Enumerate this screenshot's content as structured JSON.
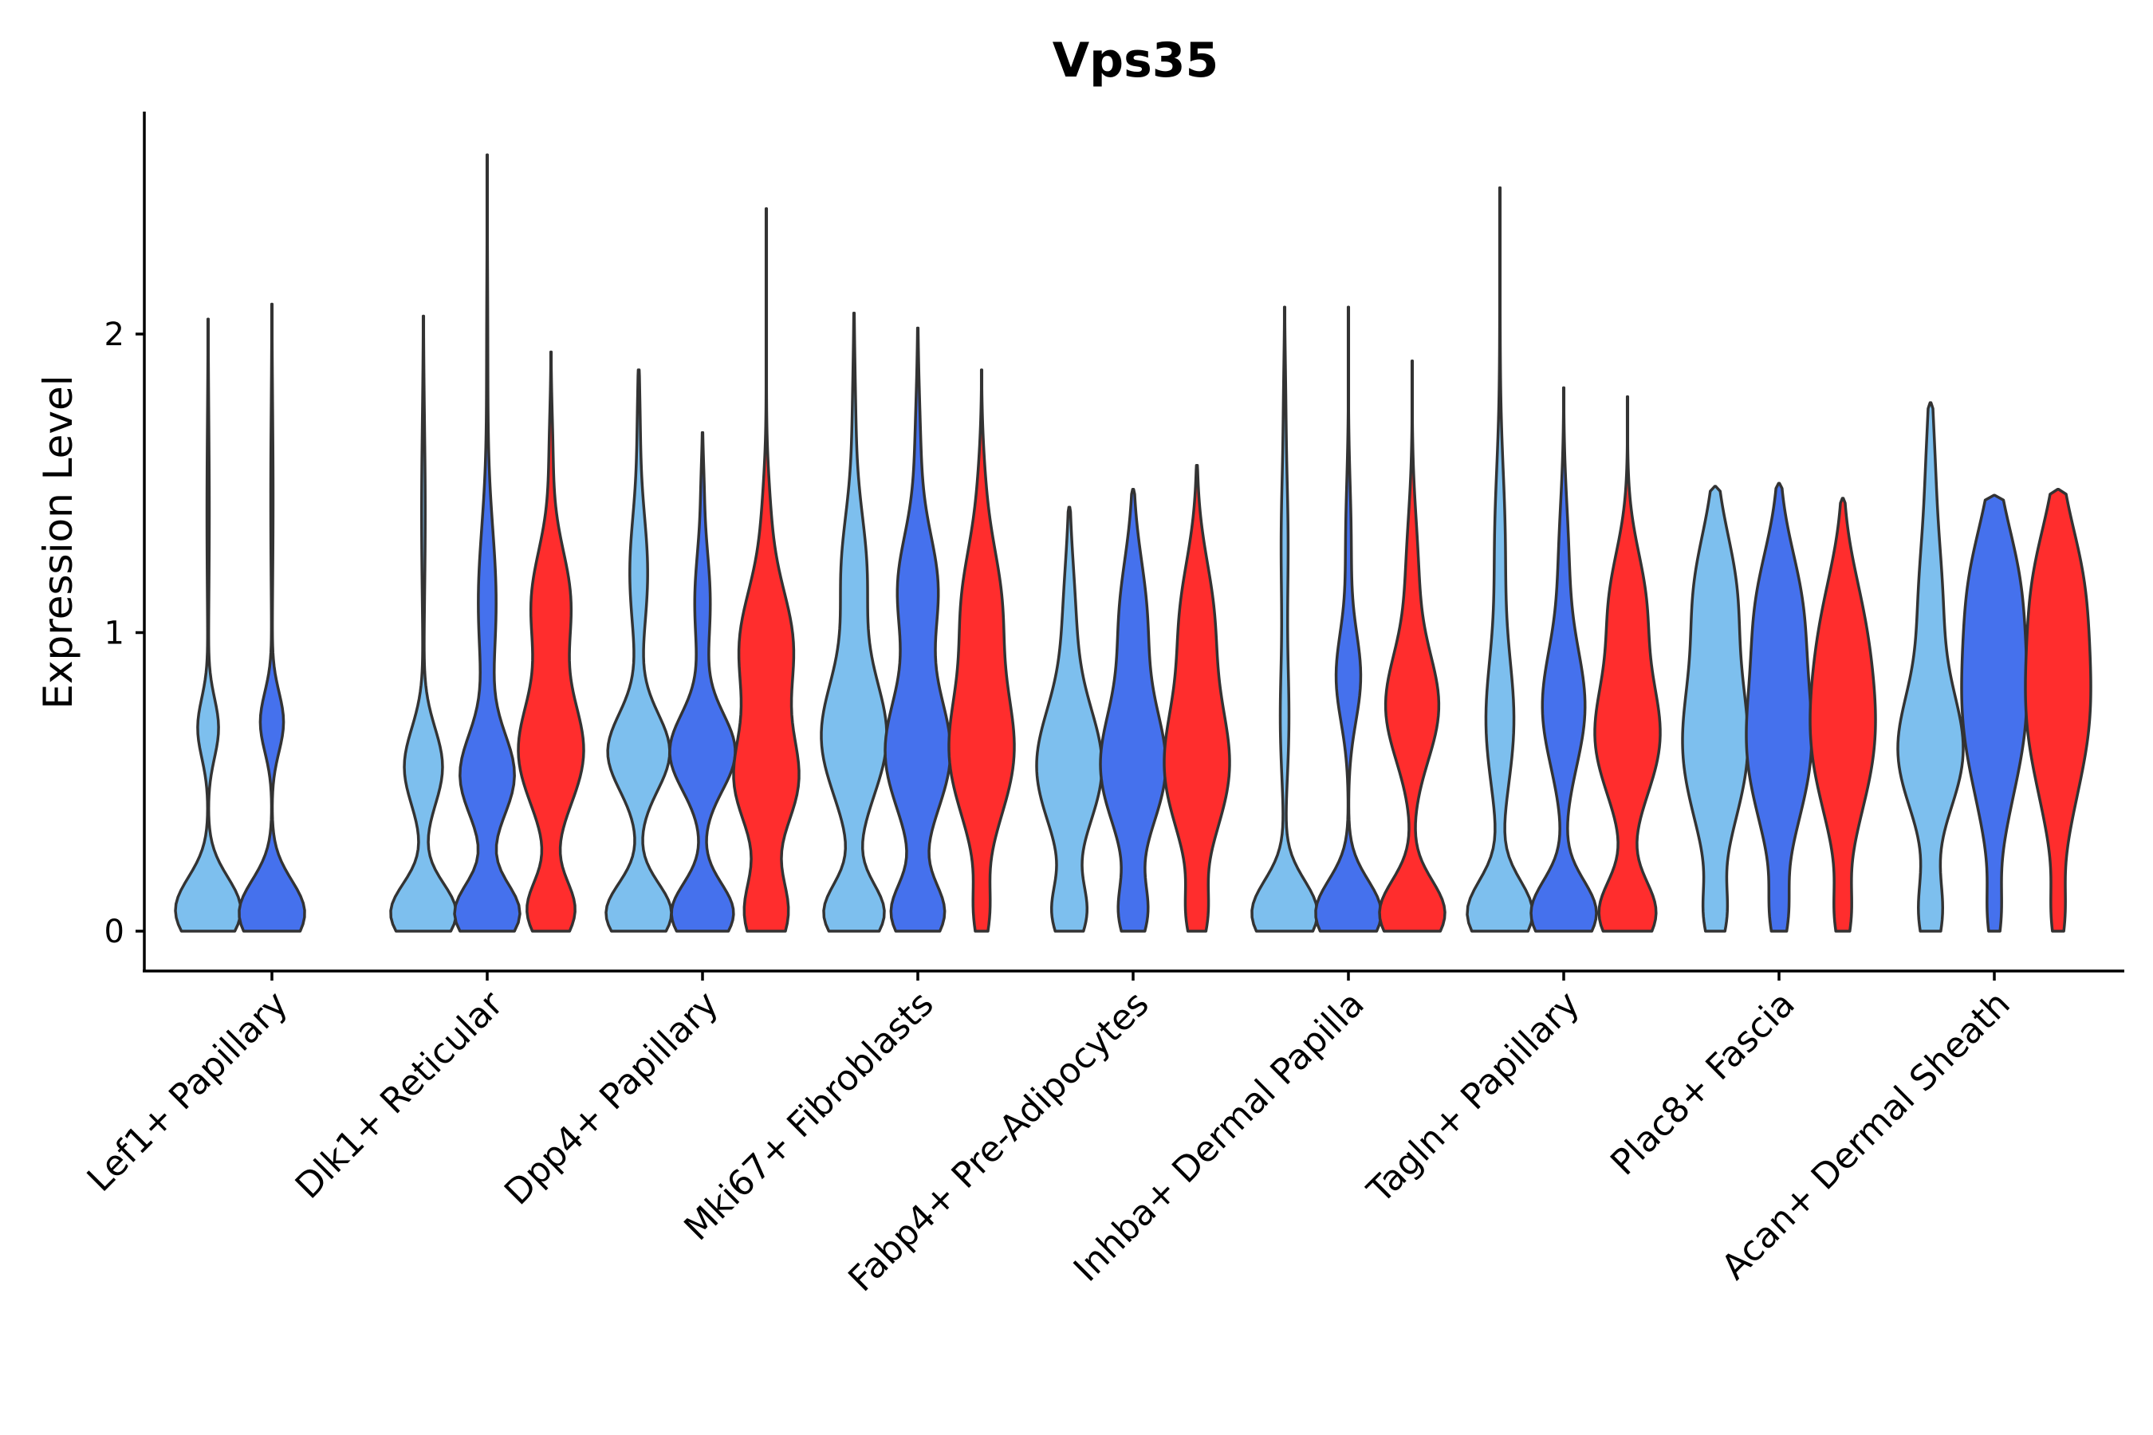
{
  "chart_data": {
    "type": "violin",
    "title": "Vps35",
    "xlabel": "",
    "ylabel": "Expression Level",
    "ylim": [
      -0.13,
      2.75
    ],
    "yticks": [
      0,
      1,
      2
    ],
    "categories": [
      "Lef1+ Papillary",
      "Dlk1+ Reticular",
      "Dpp4+ Papillary",
      "Mki67+ Fibroblasts",
      "Fabp4+ Pre-Adipocytes",
      "Inhba+ Dermal Papilla",
      "Tagln+ Papillary",
      "Plac8+ Fascia",
      "Acan+ Dermal Sheath"
    ],
    "groups": [
      {
        "name": "group1",
        "color": "#7DBFEE"
      },
      {
        "name": "group2",
        "color": "#4571ED"
      },
      {
        "name": "group3",
        "color": "#FF2D2D"
      }
    ],
    "violins": [
      {
        "category": 0,
        "group": 0,
        "max": 2.05,
        "modes": [
          [
            0.07,
            0.85,
            0.11
          ],
          [
            0.68,
            0.27,
            0.1
          ],
          [
            1.4,
            0.03,
            0.3
          ]
        ]
      },
      {
        "category": 0,
        "group": 1,
        "max": 2.1,
        "modes": [
          [
            0.06,
            0.85,
            0.11
          ],
          [
            0.7,
            0.3,
            0.1
          ],
          [
            1.45,
            0.03,
            0.3
          ]
        ]
      },
      {
        "category": 1,
        "group": 0,
        "max": 2.06,
        "modes": [
          [
            0.06,
            0.55,
            0.1
          ],
          [
            0.55,
            0.32,
            0.13
          ],
          [
            1.4,
            0.03,
            0.3
          ]
        ]
      },
      {
        "category": 1,
        "group": 1,
        "max": 2.6,
        "modes": [
          [
            0.06,
            0.55,
            0.1
          ],
          [
            0.52,
            0.45,
            0.14
          ],
          [
            1.1,
            0.15,
            0.25
          ],
          [
            1.9,
            0.01,
            0.3
          ]
        ]
      },
      {
        "category": 1,
        "group": 2,
        "max": 1.94,
        "modes": [
          [
            0.07,
            0.55,
            0.1
          ],
          [
            0.6,
            0.75,
            0.18
          ],
          [
            1.1,
            0.45,
            0.18
          ],
          [
            1.6,
            0.04,
            0.15
          ]
        ]
      },
      {
        "category": 2,
        "group": 0,
        "max": 1.88,
        "modes": [
          [
            0.06,
            0.55,
            0.1
          ],
          [
            0.6,
            0.52,
            0.13
          ],
          [
            1.2,
            0.15,
            0.2
          ],
          [
            1.7,
            0.02,
            0.15
          ]
        ]
      },
      {
        "category": 2,
        "group": 1,
        "max": 1.67,
        "modes": [
          [
            0.06,
            0.6,
            0.1
          ],
          [
            0.6,
            0.63,
            0.13
          ],
          [
            1.1,
            0.15,
            0.18
          ],
          [
            1.5,
            0.02,
            0.1
          ]
        ]
      },
      {
        "category": 2,
        "group": 2,
        "max": 2.42,
        "modes": [
          [
            0.06,
            0.6,
            0.12
          ],
          [
            0.5,
            0.85,
            0.16
          ],
          [
            0.95,
            0.75,
            0.2
          ],
          [
            1.4,
            0.08,
            0.15
          ],
          [
            2.0,
            0.006,
            0.3
          ]
        ]
      },
      {
        "category": 3,
        "group": 0,
        "max": 2.07,
        "modes": [
          [
            0.06,
            0.6,
            0.1
          ],
          [
            0.65,
            0.65,
            0.2
          ],
          [
            1.2,
            0.25,
            0.2
          ],
          [
            1.7,
            0.03,
            0.2
          ]
        ]
      },
      {
        "category": 3,
        "group": 1,
        "max": 2.02,
        "modes": [
          [
            0.06,
            0.6,
            0.1
          ],
          [
            0.6,
            0.75,
            0.2
          ],
          [
            1.15,
            0.45,
            0.18
          ],
          [
            1.6,
            0.06,
            0.2
          ]
        ]
      },
      {
        "category": 3,
        "group": 2,
        "max": 1.88,
        "modes": [
          [
            0.06,
            0.2,
            0.1
          ],
          [
            0.6,
            0.95,
            0.22
          ],
          [
            1.1,
            0.55,
            0.2
          ],
          [
            1.5,
            0.06,
            0.15
          ]
        ]
      },
      {
        "category": 4,
        "group": 0,
        "max": 1.42,
        "modes": [
          [
            0.06,
            0.42,
            0.1
          ],
          [
            0.55,
            0.85,
            0.2
          ],
          [
            1.05,
            0.15,
            0.2
          ]
        ]
      },
      {
        "category": 4,
        "group": 1,
        "max": 1.48,
        "modes": [
          [
            0.06,
            0.35,
            0.1
          ],
          [
            0.55,
            0.85,
            0.2
          ],
          [
            1.05,
            0.35,
            0.2
          ]
        ]
      },
      {
        "category": 4,
        "group": 2,
        "max": 1.56,
        "modes": [
          [
            0.05,
            0.25,
            0.1
          ],
          [
            0.55,
            0.92,
            0.22
          ],
          [
            1.05,
            0.45,
            0.2
          ]
        ]
      },
      {
        "category": 5,
        "group": 0,
        "max": 2.09,
        "modes": [
          [
            0.06,
            0.95,
            0.11
          ],
          [
            0.7,
            0.12,
            0.2
          ],
          [
            1.3,
            0.1,
            0.25
          ],
          [
            1.8,
            0.02,
            0.15
          ]
        ]
      },
      {
        "category": 5,
        "group": 1,
        "max": 2.09,
        "modes": [
          [
            0.06,
            0.95,
            0.11
          ],
          [
            0.85,
            0.35,
            0.15
          ],
          [
            1.3,
            0.08,
            0.2
          ]
        ]
      },
      {
        "category": 5,
        "group": 2,
        "max": 1.91,
        "modes": [
          [
            0.06,
            0.85,
            0.11
          ],
          [
            0.75,
            0.68,
            0.18
          ],
          [
            1.2,
            0.15,
            0.2
          ]
        ]
      },
      {
        "category": 6,
        "group": 0,
        "max": 2.49,
        "modes": [
          [
            0.06,
            0.95,
            0.11
          ],
          [
            0.7,
            0.4,
            0.22
          ],
          [
            1.3,
            0.15,
            0.25
          ],
          [
            2.0,
            0.006,
            0.3
          ]
        ]
      },
      {
        "category": 6,
        "group": 1,
        "max": 1.82,
        "modes": [
          [
            0.06,
            0.85,
            0.11
          ],
          [
            0.75,
            0.55,
            0.2
          ],
          [
            1.25,
            0.12,
            0.2
          ]
        ]
      },
      {
        "category": 6,
        "group": 2,
        "max": 1.79,
        "modes": [
          [
            0.06,
            0.75,
            0.11
          ],
          [
            0.65,
            0.85,
            0.2
          ],
          [
            1.1,
            0.45,
            0.18
          ]
        ]
      },
      {
        "category": 7,
        "group": 0,
        "max": 1.49,
        "modes": [
          [
            0.05,
            0.25,
            0.1
          ],
          [
            0.62,
            0.9,
            0.26
          ],
          [
            1.15,
            0.5,
            0.2
          ]
        ]
      },
      {
        "category": 7,
        "group": 1,
        "max": 1.5,
        "modes": [
          [
            0.05,
            0.2,
            0.1
          ],
          [
            0.62,
            0.95,
            0.26
          ],
          [
            1.1,
            0.55,
            0.2
          ]
        ]
      },
      {
        "category": 7,
        "group": 2,
        "max": 1.45,
        "modes": [
          [
            0.05,
            0.2,
            0.1
          ],
          [
            0.65,
            0.95,
            0.26
          ],
          [
            1.05,
            0.4,
            0.2
          ]
        ]
      },
      {
        "category": 8,
        "group": 0,
        "max": 1.77,
        "modes": [
          [
            0.06,
            0.3,
            0.12
          ],
          [
            0.6,
            0.85,
            0.2
          ],
          [
            1.1,
            0.3,
            0.22
          ],
          [
            1.55,
            0.1,
            0.2
          ]
        ]
      },
      {
        "category": 8,
        "group": 1,
        "max": 1.46,
        "modes": [
          [
            0.05,
            0.15,
            0.1
          ],
          [
            0.75,
            0.95,
            0.3
          ],
          [
            1.2,
            0.45,
            0.2
          ]
        ]
      },
      {
        "category": 8,
        "group": 2,
        "max": 1.48,
        "modes": [
          [
            0.05,
            0.15,
            0.1
          ],
          [
            0.75,
            0.95,
            0.3
          ],
          [
            1.2,
            0.45,
            0.2
          ]
        ]
      }
    ]
  }
}
